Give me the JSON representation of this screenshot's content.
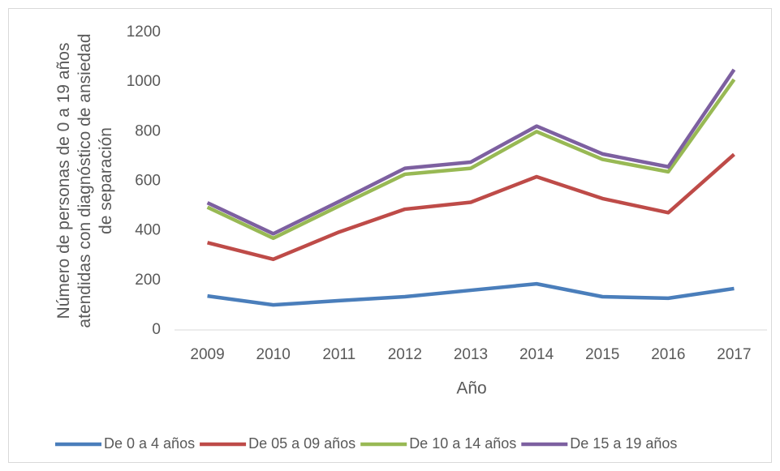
{
  "chart_data": {
    "type": "line",
    "categories": [
      "2009",
      "2010",
      "2011",
      "2012",
      "2013",
      "2014",
      "2015",
      "2016",
      "2017"
    ],
    "series": [
      {
        "name": "De 0 a 4 años",
        "color": "#4a7ebb",
        "values": [
          137,
          101,
          118,
          134,
          160,
          186,
          134,
          128,
          167
        ]
      },
      {
        "name": "De 05 a 09 años",
        "color": "#be4b48",
        "values": [
          352,
          285,
          395,
          487,
          515,
          618,
          530,
          473,
          708
        ]
      },
      {
        "name": "De 10 a 14 años",
        "color": "#98b954",
        "values": [
          495,
          370,
          500,
          628,
          652,
          800,
          688,
          638,
          1010
        ]
      },
      {
        "name": "De 15 a 19 años",
        "color": "#7d60a0",
        "values": [
          513,
          388,
          518,
          652,
          677,
          822,
          710,
          658,
          1050
        ]
      }
    ],
    "x_label": "Año",
    "y_label": [
      "Número de personas de 0 a 19 años",
      "atendidas con diagnóstico de ansiedad",
      "de separación"
    ],
    "ylim": [
      0,
      1200
    ],
    "yticks": [
      0,
      200,
      400,
      600,
      800,
      1000,
      1200
    ],
    "grid": false,
    "legend": "bottom"
  }
}
